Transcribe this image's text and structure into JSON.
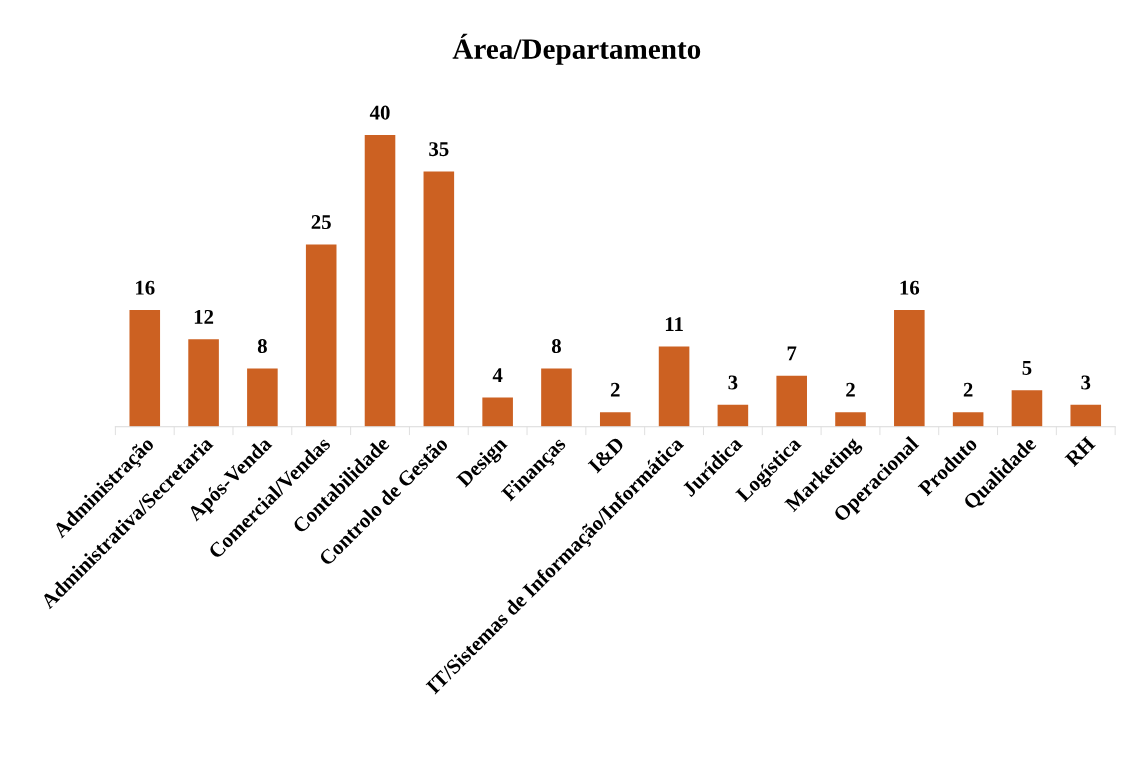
{
  "chart_data": {
    "type": "bar",
    "title": "Área/Departamento",
    "categories": [
      "Administração",
      "Administrativa/Secretaria",
      "Após-Venda",
      "Comercial/Vendas",
      "Contabilidade",
      "Controlo de Gestão",
      "Design",
      "Finanças",
      "I&D",
      "IT/Sistemas de Informação/Informática",
      "Jurídica",
      "Logística",
      "Marketing",
      "Operacional",
      "Produto",
      "Qualidade",
      "RH"
    ],
    "values": [
      16,
      12,
      8,
      25,
      40,
      35,
      4,
      8,
      2,
      11,
      3,
      7,
      2,
      16,
      2,
      5,
      3
    ],
    "color": "#cc6122",
    "data_labels": true,
    "tick_labels": "x",
    "grid": false,
    "legend": false
  }
}
